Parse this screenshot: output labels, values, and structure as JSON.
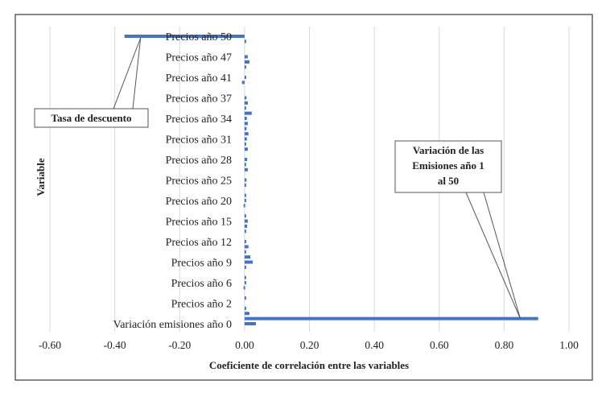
{
  "chart_data": {
    "type": "bar",
    "orientation": "horizontal",
    "title": "",
    "xlabel": "Coeficiente de correlación entre las variables",
    "ylabel": "Variable",
    "xlim": [
      -0.6,
      1.0
    ],
    "xticks": [
      -0.6,
      -0.4,
      -0.2,
      0.0,
      0.2,
      0.4,
      0.6,
      0.8,
      1.0
    ],
    "xtick_labels": [
      "-0.60",
      "-0.40",
      "-0.20",
      "0.00",
      "0.20",
      "0.40",
      "0.60",
      "0.80",
      "1.00"
    ],
    "grid": "vertical",
    "bar_color": "#4472C4",
    "y_labels": [
      "Precios año 50",
      "Precios año 47",
      "Precios año 41",
      "Precios año 37",
      "Precios año 34",
      "Precios año 31",
      "Precios año 28",
      "Precios año 25",
      "Precios año 20",
      "Precios año 15",
      "Precios año 12",
      "Precios año 9",
      "Precios año 6",
      "Precios año 2",
      "Variación emisiones año 0"
    ],
    "bars": [
      {
        "slot": 0.0,
        "value": -0.37
      },
      {
        "slot": 0.25,
        "value": 0.005
      },
      {
        "slot": 1.0,
        "value": 0.01
      },
      {
        "slot": 1.25,
        "value": 0.015
      },
      {
        "slot": 1.5,
        "value": 0.005
      },
      {
        "slot": 2.0,
        "value": 0.003
      },
      {
        "slot": 2.25,
        "value": -0.008
      },
      {
        "slot": 3.0,
        "value": 0.006
      },
      {
        "slot": 3.25,
        "value": 0.01
      },
      {
        "slot": 3.5,
        "value": 0.004
      },
      {
        "slot": 3.75,
        "value": 0.022
      },
      {
        "slot": 4.0,
        "value": 0.007
      },
      {
        "slot": 4.25,
        "value": 0.01
      },
      {
        "slot": 4.5,
        "value": 0.006
      },
      {
        "slot": 4.75,
        "value": 0.012
      },
      {
        "slot": 5.0,
        "value": 0.007
      },
      {
        "slot": 5.25,
        "value": 0.005
      },
      {
        "slot": 5.5,
        "value": 0.01
      },
      {
        "slot": 6.0,
        "value": 0.008
      },
      {
        "slot": 6.25,
        "value": 0.004
      },
      {
        "slot": 6.5,
        "value": 0.01
      },
      {
        "slot": 7.0,
        "value": 0.006
      },
      {
        "slot": 7.25,
        "value": 0.004
      },
      {
        "slot": 7.75,
        "value": 0.005
      },
      {
        "slot": 8.0,
        "value": 0.003
      },
      {
        "slot": 8.25,
        "value": -0.003
      },
      {
        "slot": 8.75,
        "value": 0.004
      },
      {
        "slot": 9.0,
        "value": 0.01
      },
      {
        "slot": 9.25,
        "value": 0.008
      },
      {
        "slot": 9.5,
        "value": 0.004
      },
      {
        "slot": 10.0,
        "value": 0.005
      },
      {
        "slot": 10.25,
        "value": 0.012
      },
      {
        "slot": 10.5,
        "value": 0.003
      },
      {
        "slot": 10.75,
        "value": 0.018
      },
      {
        "slot": 11.0,
        "value": 0.025
      },
      {
        "slot": 11.25,
        "value": 0.004
      },
      {
        "slot": 11.75,
        "value": 0.003
      },
      {
        "slot": 12.0,
        "value": 0.004
      },
      {
        "slot": 12.25,
        "value": -0.003
      },
      {
        "slot": 12.75,
        "value": 0.003
      },
      {
        "slot": 13.25,
        "value": 0.004
      },
      {
        "slot": 13.5,
        "value": 0.015
      },
      {
        "slot": 13.75,
        "value": 0.905
      },
      {
        "slot": 14.0,
        "value": 0.035
      }
    ],
    "callouts": [
      {
        "lines": [
          "Tasa de descuento"
        ],
        "target_slot": 0.0,
        "target_value": -0.37
      },
      {
        "lines": [
          "Variación de las",
          "Emisiones año 1",
          "al 50"
        ],
        "target_slot": 13.75,
        "target_value": 0.85
      }
    ]
  }
}
